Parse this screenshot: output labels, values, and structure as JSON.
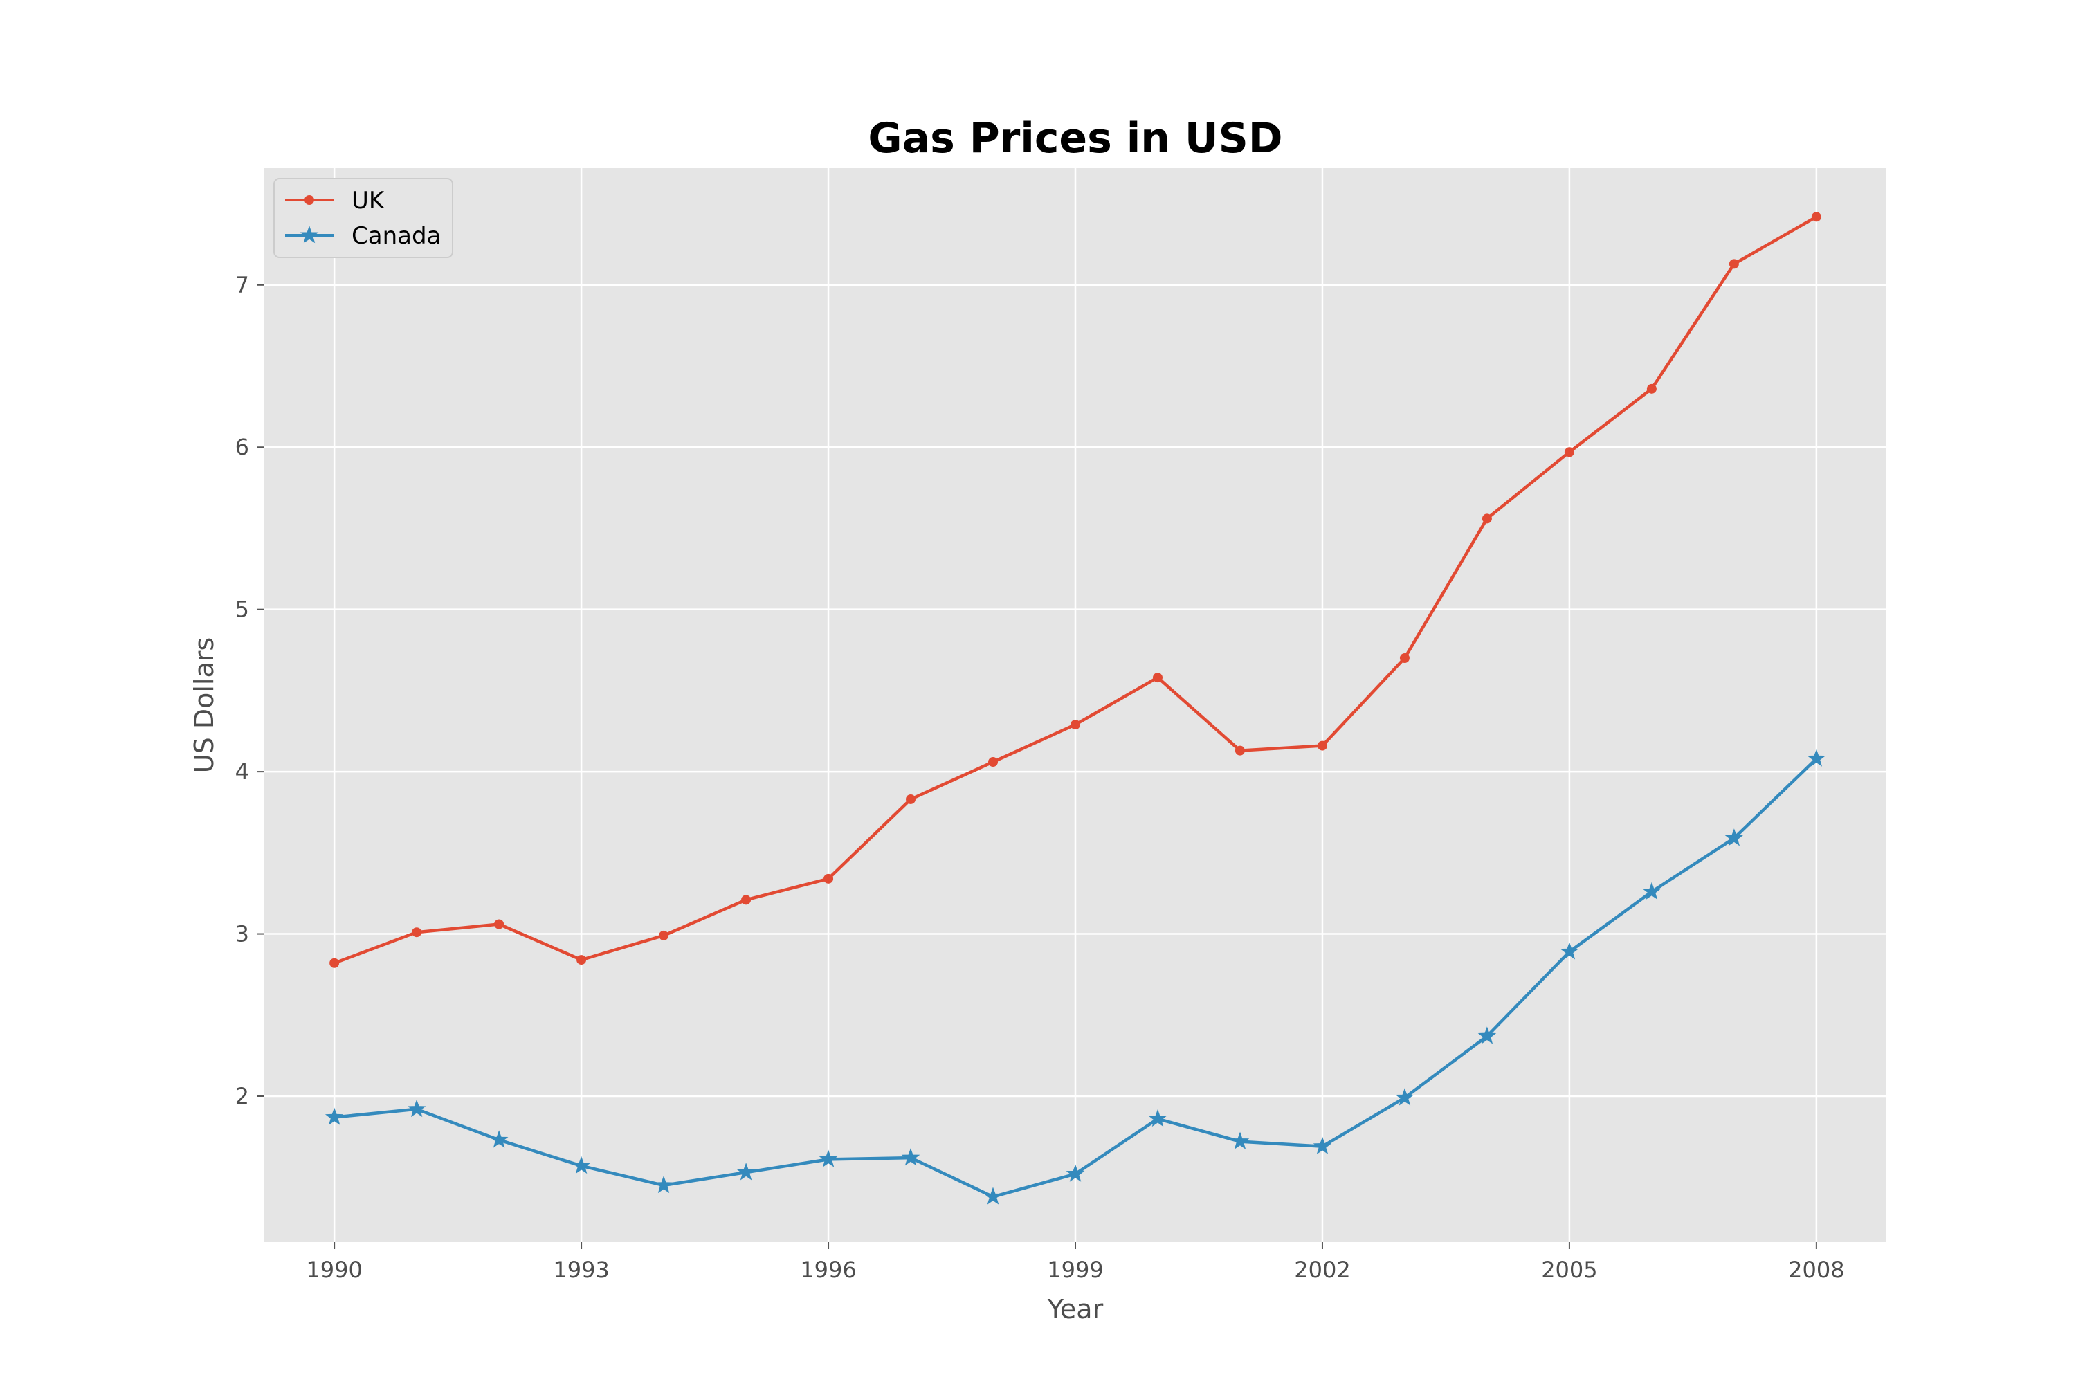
{
  "colors": {
    "figure_background": "#ffffff",
    "plot_background": "#e5e5e5",
    "grid": "#ffffff",
    "tick_text": "#4d4d4d"
  },
  "chart_data": {
    "type": "line",
    "title": "Gas Prices in USD",
    "xlabel": "Year",
    "ylabel": "US Dollars",
    "xlim": [
      1989.15,
      2008.85
    ],
    "ylim": [
      1.1,
      7.72
    ],
    "xticks": [
      1990,
      1993,
      1996,
      1999,
      2002,
      2005,
      2008
    ],
    "yticks": [
      2,
      3,
      4,
      5,
      6,
      7
    ],
    "grid": true,
    "legend_position": "top-left",
    "x": [
      1990,
      1991,
      1992,
      1993,
      1994,
      1995,
      1996,
      1997,
      1998,
      1999,
      2000,
      2001,
      2002,
      2003,
      2004,
      2005,
      2006,
      2007,
      2008
    ],
    "series": [
      {
        "name": "UK",
        "color": "#e24a33",
        "marker": "dot",
        "values": [
          2.82,
          3.01,
          3.06,
          2.84,
          2.99,
          3.21,
          3.34,
          3.83,
          4.06,
          4.29,
          4.58,
          4.13,
          4.16,
          4.7,
          5.56,
          5.97,
          6.36,
          7.13,
          7.42
        ]
      },
      {
        "name": "Canada",
        "color": "#348abd",
        "marker": "star",
        "values": [
          1.87,
          1.92,
          1.73,
          1.57,
          1.45,
          1.53,
          1.61,
          1.62,
          1.38,
          1.52,
          1.86,
          1.72,
          1.69,
          1.99,
          2.37,
          2.89,
          3.26,
          3.59,
          4.08
        ]
      }
    ]
  }
}
